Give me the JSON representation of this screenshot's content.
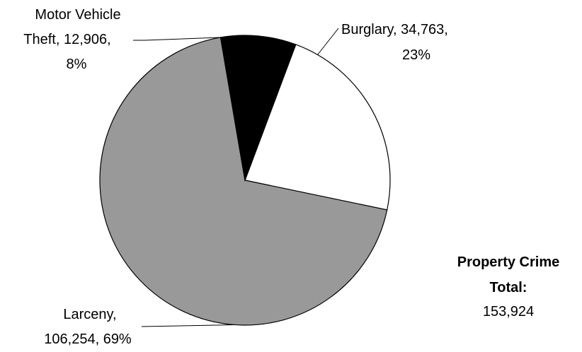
{
  "chart_data": {
    "type": "pie",
    "title": "",
    "slices": [
      {
        "name": "Burglary",
        "value_label": "34,763,",
        "percent_label": "23%",
        "value": 34763,
        "percent": 23,
        "color": "#ffffff"
      },
      {
        "name": "Larceny",
        "value_label": "106,254, 69%",
        "value": 106254,
        "percent": 69,
        "color": "#999999"
      },
      {
        "name": "Motor Vehicle",
        "name_line2": "Theft, 12,906,",
        "percent_label": "8%",
        "value": 12906,
        "percent": 8,
        "color": "#000000"
      }
    ],
    "total": {
      "label_line1": "Property Crime",
      "label_line2": "Total:",
      "value": "153,924"
    }
  }
}
